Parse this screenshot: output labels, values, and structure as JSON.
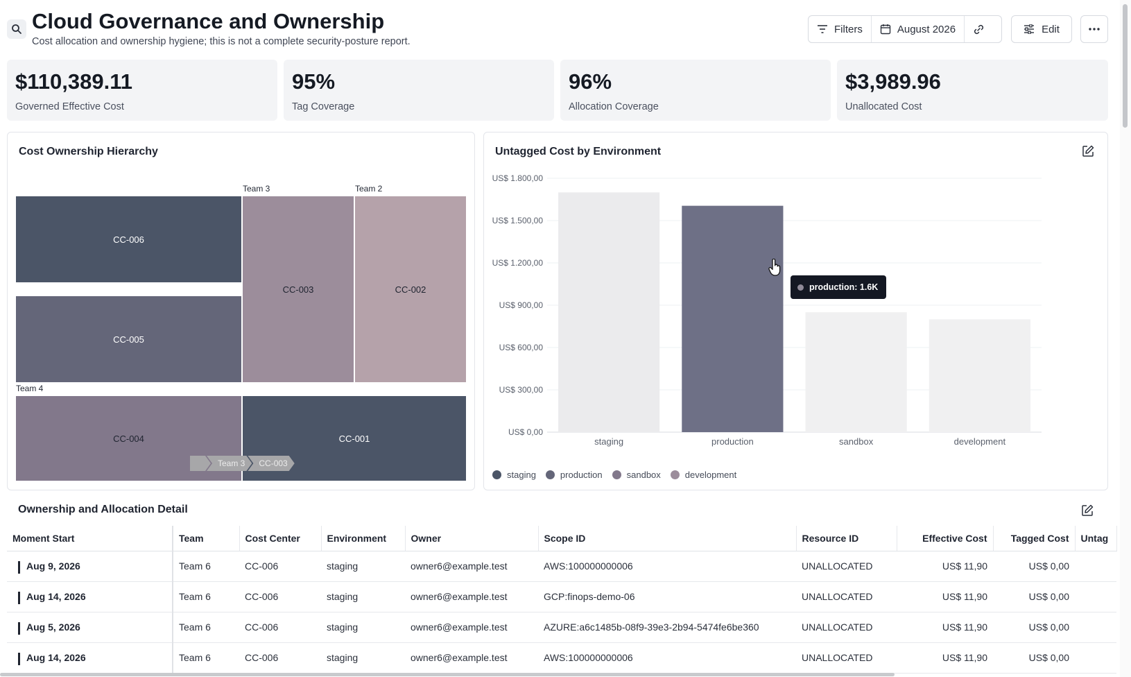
{
  "header": {
    "title": "Cloud Governance and Ownership",
    "subtitle": "Cost allocation and ownership hygiene; this is not a complete security-posture report.",
    "filters_label": "Filters",
    "date_label": "August 2026",
    "edit_label": "Edit"
  },
  "kpis": [
    {
      "value": "$110,389.11",
      "label": "Governed Effective Cost"
    },
    {
      "value": "95%",
      "label": "Tag Coverage"
    },
    {
      "value": "96%",
      "label": "Allocation Coverage"
    },
    {
      "value": "$3,989.96",
      "label": "Unallocated Cost"
    }
  ],
  "treemap": {
    "title": "Cost Ownership Hierarchy",
    "groups": [
      "Team 3",
      "Team 2",
      "Team 4"
    ],
    "cells": [
      {
        "label": "CC-006",
        "color": "#4b5567",
        "text_color": "#ffffff"
      },
      {
        "label": "CC-005",
        "color": "#646679",
        "text_color": "#ffffff"
      },
      {
        "label": "CC-003",
        "color": "#9c8d9b",
        "text_color": "#1f2430"
      },
      {
        "label": "CC-002",
        "color": "#b5a2aa",
        "text_color": "#1f2430"
      },
      {
        "label": "CC-004",
        "color": "#82788b",
        "text_color": "#1f2430"
      },
      {
        "label": "CC-001",
        "color": "#4b5567",
        "text_color": "#ffffff"
      }
    ],
    "breadcrumb": [
      "",
      "Team 3",
      "CC-003"
    ]
  },
  "bar_chart_panel": {
    "tooltip": "production: 1.6K"
  },
  "chart_data": {
    "type": "bar",
    "title": "Untagged Cost by Environment",
    "categories": [
      "staging",
      "production",
      "sandbox",
      "development"
    ],
    "values": [
      1700,
      1605,
      850,
      800
    ],
    "colors": [
      "#ebebed",
      "#6e7086",
      "#f0f0f1",
      "#f0f0f1"
    ],
    "legend_colors": [
      "#4b5567",
      "#646679",
      "#82788b",
      "#9c8d9b"
    ],
    "yticks": [
      "US$ 0,00",
      "US$ 300,00",
      "US$ 600,00",
      "US$ 900,00",
      "US$ 1.200,00",
      "US$ 1.500,00",
      "US$ 1.800,00"
    ],
    "ylim": [
      0,
      1800
    ],
    "grid": true,
    "legend_position": "bottom-left",
    "xlabel": "",
    "ylabel": ""
  },
  "table": {
    "title": "Ownership and Allocation Detail",
    "columns": [
      "Moment Start",
      "Team",
      "Cost Center",
      "Environment",
      "Owner",
      "Scope ID",
      "Resource ID",
      "Effective Cost",
      "Tagged Cost",
      "Untag"
    ],
    "rows": [
      [
        "Aug 9, 2026",
        "Team 6",
        "CC-006",
        "staging",
        "owner6@example.test",
        "AWS:100000000006",
        "UNALLOCATED",
        "US$ 11,90",
        "US$ 0,00",
        ""
      ],
      [
        "Aug 14, 2026",
        "Team 6",
        "CC-006",
        "staging",
        "owner6@example.test",
        "GCP:finops-demo-06",
        "UNALLOCATED",
        "US$ 11,90",
        "US$ 0,00",
        ""
      ],
      [
        "Aug 5, 2026",
        "Team 6",
        "CC-006",
        "staging",
        "owner6@example.test",
        "AZURE:a6c1485b-08f9-39e3-2b94-5474fe6be360",
        "UNALLOCATED",
        "US$ 11,90",
        "US$ 0,00",
        ""
      ],
      [
        "Aug 14, 2026",
        "Team 6",
        "CC-006",
        "staging",
        "owner6@example.test",
        "AWS:100000000006",
        "UNALLOCATED",
        "US$ 11,90",
        "US$ 0,00",
        ""
      ]
    ]
  }
}
